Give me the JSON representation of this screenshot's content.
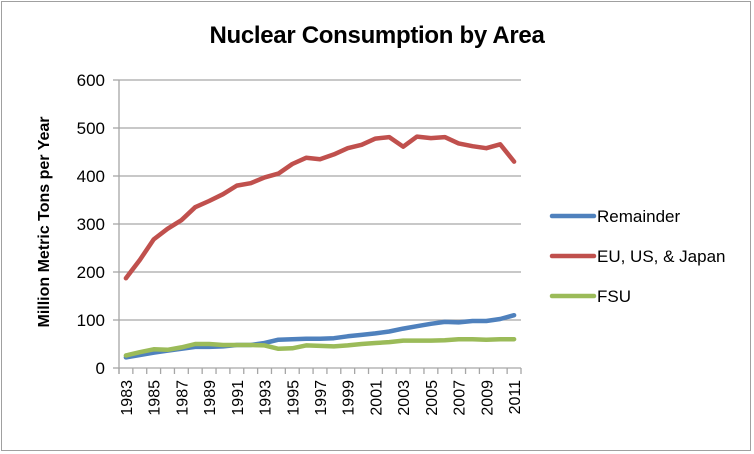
{
  "chart_data": {
    "type": "line",
    "title": "Nuclear Consumption by Area",
    "xlabel": "",
    "ylabel": "Million Metric Tons per Year",
    "ylim": [
      0,
      600
    ],
    "yticks": [
      0,
      100,
      200,
      300,
      400,
      500,
      600
    ],
    "grid": true,
    "legend_position": "right",
    "categories": [
      "1983",
      "1984",
      "1985",
      "1986",
      "1987",
      "1988",
      "1989",
      "1990",
      "1991",
      "1992",
      "1993",
      "1994",
      "1995",
      "1996",
      "1997",
      "1998",
      "1999",
      "2000",
      "2001",
      "2002",
      "2003",
      "2004",
      "2005",
      "2006",
      "2007",
      "2008",
      "2009",
      "2010",
      "2011"
    ],
    "xtick_labels": [
      "1983",
      "1985",
      "1987",
      "1989",
      "1991",
      "1993",
      "1995",
      "1997",
      "1999",
      "2001",
      "2003",
      "2005",
      "2007",
      "2009",
      "2011"
    ],
    "series": [
      {
        "name": "Remainder",
        "color": "#4f81bd",
        "values": [
          22,
          27,
          32,
          36,
          40,
          44,
          44,
          45,
          48,
          48,
          52,
          59,
          60,
          61,
          61,
          62,
          66,
          69,
          72,
          76,
          82,
          87,
          92,
          96,
          95,
          98,
          98,
          102,
          110
        ]
      },
      {
        "name": "EU, US, & Japan",
        "color": "#c0504d",
        "values": [
          187,
          225,
          268,
          290,
          308,
          335,
          348,
          362,
          380,
          385,
          397,
          405,
          425,
          438,
          435,
          445,
          458,
          465,
          478,
          481,
          461,
          482,
          479,
          481,
          468,
          462,
          458,
          466,
          430
        ]
      },
      {
        "name": "FSU",
        "color": "#9bbb59",
        "values": [
          26,
          33,
          39,
          38,
          43,
          50,
          50,
          48,
          48,
          48,
          47,
          40,
          41,
          47,
          46,
          45,
          47,
          50,
          52,
          54,
          57,
          57,
          57,
          58,
          60,
          60,
          59,
          60,
          60
        ]
      }
    ]
  }
}
